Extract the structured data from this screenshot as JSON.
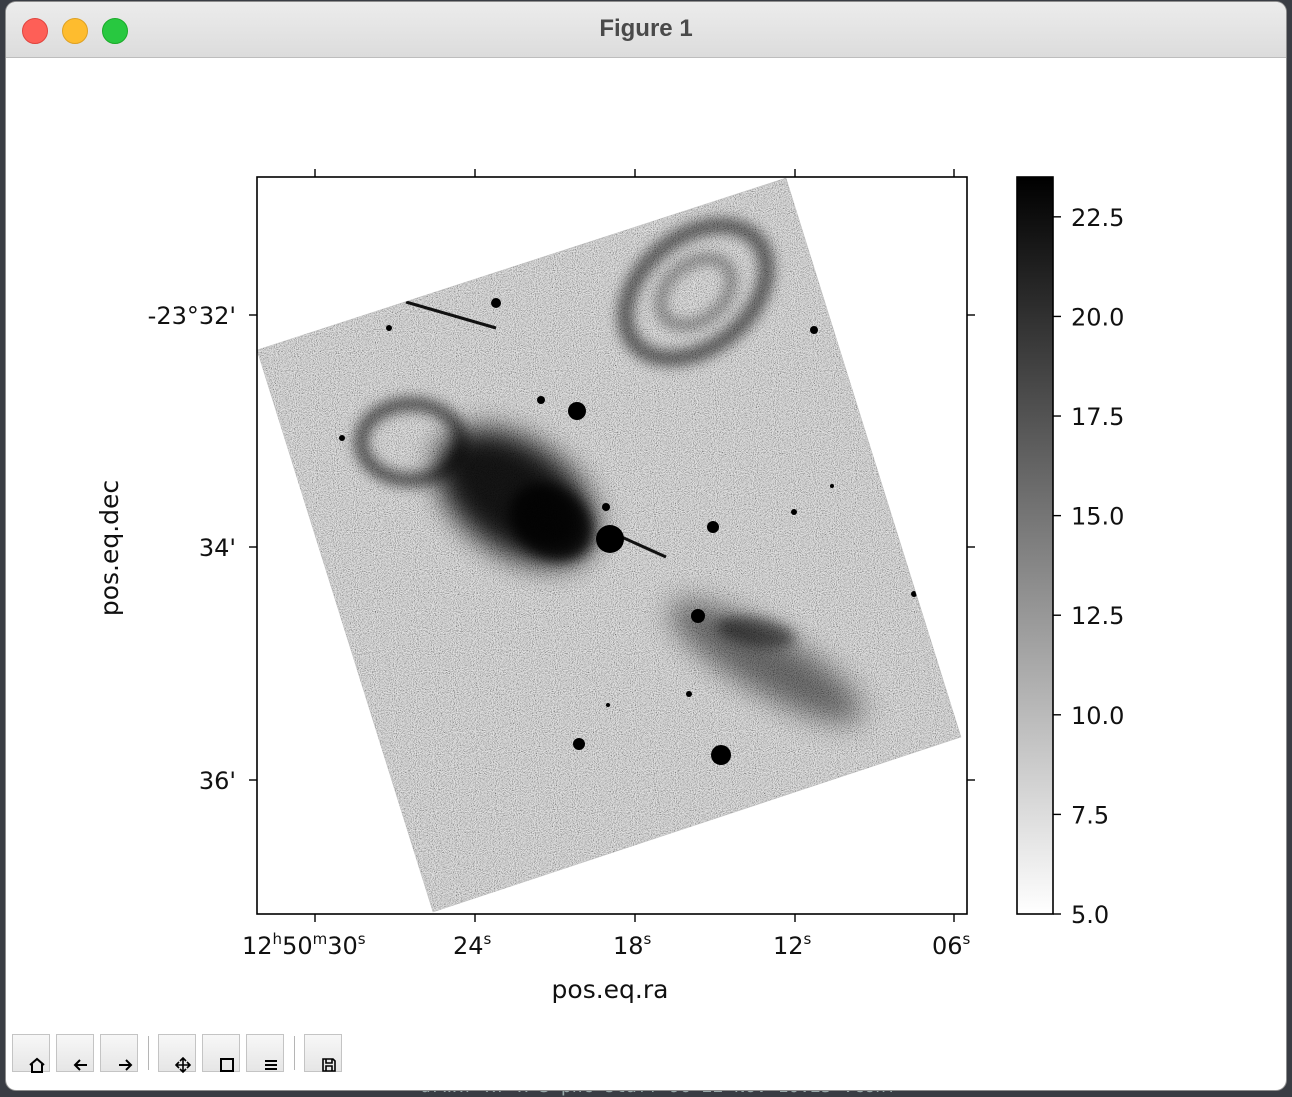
{
  "window": {
    "title": "Figure 1"
  },
  "toolbar": {
    "buttons": [
      {
        "name": "home-button",
        "icon": "home-icon"
      },
      {
        "name": "back-button",
        "icon": "back-arrow-icon"
      },
      {
        "name": "forward-button",
        "icon": "forward-arrow-icon"
      },
      {
        "name": "pan-button",
        "icon": "pan-icon"
      },
      {
        "name": "zoom-button",
        "icon": "zoom-icon"
      },
      {
        "name": "subplots-button",
        "icon": "subplots-icon"
      },
      {
        "name": "save-button",
        "icon": "save-icon"
      }
    ]
  },
  "chart_data": {
    "type": "heatmap",
    "title": "",
    "xlabel": "pos.eq.ra",
    "ylabel": "pos.eq.dec",
    "x_ticks": [
      {
        "h": "12",
        "m": "50",
        "s": "30",
        "full": true
      },
      {
        "s": "24"
      },
      {
        "s": "18"
      },
      {
        "s": "12"
      },
      {
        "s": "06"
      }
    ],
    "y_ticks": [
      "-23°32'",
      "34'",
      "36'"
    ],
    "colorbar": {
      "colormap": "gray_r",
      "range": [
        5.0,
        23.5
      ],
      "ticks": [
        "22.5",
        "20.0",
        "17.5",
        "15.0",
        "12.5",
        "10.0",
        "7.5",
        "5.0"
      ]
    },
    "grid": false
  }
}
